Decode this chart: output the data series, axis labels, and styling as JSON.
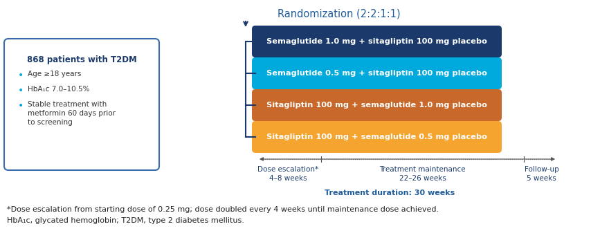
{
  "title": "Randomization (2:2:1:1)",
  "title_color": "#1F5C99",
  "title_fontsize": 10.5,
  "box_title": "868 patients with T2DM",
  "box_title_color": "#1B3A6B",
  "box_bullets": [
    "Age ≥18 years",
    "HbA₁c 7.0–10.5%",
    "Stable treatment with\nmetformin 60 days prior\nto screening"
  ],
  "bullet_color": "#00AADD",
  "box_border_color": "#3A6BAA",
  "arms": [
    {
      "label": "Semaglutide 1.0 mg + sitagliptin 100 mg placebo",
      "color": "#1B3A6B"
    },
    {
      "label": "Semaglutide 0.5 mg + sitagliptin 100 mg placebo",
      "color": "#00AADD"
    },
    {
      "label": "Sitagliptin 100 mg + semaglutide 1.0 mg placebo",
      "color": "#C8682A"
    },
    {
      "label": "Sitagliptin 100 mg + semaglutide 0.5 mg placebo",
      "color": "#F5A430"
    }
  ],
  "bracket_color": "#1B3A6B",
  "timeline_color": "#555555",
  "timeline_label_color": "#1B3A6B",
  "tl_sections": [
    {
      "label": "Dose escalation*\n4–8 weeks"
    },
    {
      "label": "Treatment maintenance\n22–26 weeks"
    },
    {
      "label": "Follow-up\n5 weeks"
    }
  ],
  "treatment_duration": "Treatment duration: 30 weeks",
  "footnote1": "*Dose escalation from starting dose of 0.25 mg; dose doubled every 4 weeks until maintenance dose achieved.",
  "footnote2": "HbA₁c, glycated hemoglobin; T2DM, type 2 diabetes mellitus.",
  "footnote_color": "#222222",
  "footnote_fontsize": 8.0,
  "bg_color": "#FFFFFF"
}
